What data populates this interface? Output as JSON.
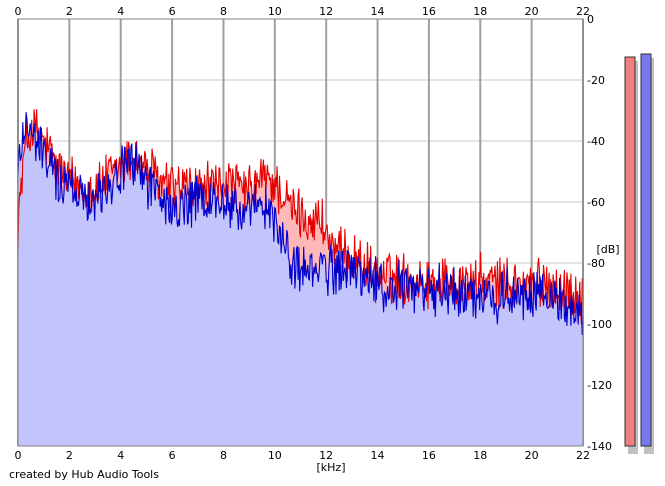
{
  "chart_data": {
    "type": "line",
    "xlabel": "[kHz]",
    "ylabel": "[dB]",
    "xlim": [
      0,
      22
    ],
    "ylim": [
      -140,
      0
    ],
    "xticks": [
      0,
      2,
      4,
      6,
      8,
      10,
      12,
      14,
      16,
      18,
      20,
      22
    ],
    "yticks": [
      0,
      -20,
      -40,
      -60,
      -80,
      -100,
      -120,
      -140
    ],
    "grid": true,
    "series": [
      {
        "color": "#e60000",
        "fill": "#ffb8b8",
        "x": [
          0,
          0.3,
          0.6,
          1.0,
          1.5,
          2.0,
          2.5,
          3.0,
          3.5,
          4.0,
          4.5,
          5.0,
          5.5,
          6.0,
          6.5,
          7.0,
          7.5,
          8.0,
          8.5,
          9.0,
          9.5,
          10.0,
          10.3,
          10.6,
          11.0,
          11.4,
          11.8,
          12.2,
          12.6,
          13.0,
          13.4,
          13.8,
          14.2,
          15.0,
          16.0,
          17.0,
          18.0,
          19.0,
          20.0,
          20.5,
          21.0,
          21.5,
          22.0
        ],
        "y": [
          -66,
          -40,
          -36,
          -40,
          -48,
          -53,
          -55,
          -56,
          -52,
          -48,
          -45,
          -49,
          -53,
          -55,
          -55,
          -56,
          -55,
          -54,
          -55,
          -57,
          -52,
          -54,
          -58,
          -62,
          -64,
          -66,
          -66,
          -74,
          -78,
          -78,
          -80,
          -84,
          -84,
          -85,
          -86,
          -86,
          -86,
          -87,
          -87,
          -86,
          -88,
          -90,
          -91
        ]
      },
      {
        "color": "#0000cc",
        "fill": "#c4c4fc",
        "x": [
          0,
          0.3,
          0.6,
          1.0,
          1.5,
          2.0,
          2.5,
          3.0,
          3.5,
          4.0,
          4.5,
          5.0,
          5.5,
          6.0,
          6.5,
          7.0,
          7.5,
          8.0,
          8.5,
          9.0,
          9.5,
          10.0,
          10.3,
          10.6,
          11.0,
          11.4,
          11.8,
          12.2,
          12.6,
          13.0,
          13.4,
          13.8,
          14.2,
          15.0,
          16.0,
          17.0,
          18.0,
          19.0,
          20.0,
          20.5,
          21.0,
          21.5,
          22.0
        ],
        "y": [
          -50,
          -32,
          -40,
          -44,
          -52,
          -55,
          -57,
          -58,
          -54,
          -50,
          -47,
          -52,
          -58,
          -64,
          -61,
          -60,
          -60,
          -60,
          -62,
          -64,
          -62,
          -65,
          -74,
          -78,
          -82,
          -83,
          -81,
          -83,
          -82,
          -82,
          -84,
          -86,
          -88,
          -88,
          -89,
          -90,
          -90,
          -91,
          -92,
          -90,
          -92,
          -95,
          -99
        ]
      }
    ],
    "level_meters": [
      {
        "color": "#f08080",
        "level_db": 0
      },
      {
        "color": "#7878f0",
        "level_db": 0
      }
    ]
  },
  "footer": {
    "credit": "created by Hub Audio Tools"
  }
}
